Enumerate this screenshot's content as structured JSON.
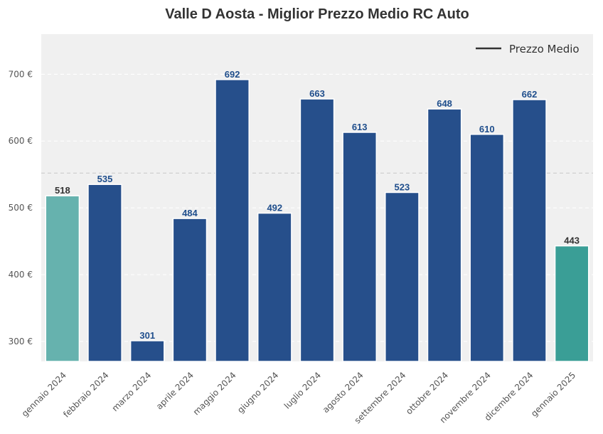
{
  "chart_data": {
    "type": "bar",
    "title": "Valle D Aosta - Miglior Prezzo Medio RC Auto",
    "categories": [
      "gennaio 2024",
      "febbraio 2024",
      "marzo 2024",
      "aprile 2024",
      "maggio 2024",
      "giugno 2024",
      "luglio 2024",
      "agosto 2024",
      "settembre 2024",
      "ottobre 2024",
      "novembre 2024",
      "dicembre 2024",
      "gennaio 2025"
    ],
    "values": [
      518,
      535,
      301,
      484,
      692,
      492,
      663,
      613,
      523,
      648,
      610,
      662,
      443
    ],
    "labels": [
      "518",
      "535",
      "301",
      "484",
      "692",
      "492",
      "663",
      "613",
      "523",
      "648",
      "610",
      "662",
      "443"
    ],
    "bar_colors": [
      "#66b2ae",
      "#264f8b",
      "#264f8b",
      "#264f8b",
      "#264f8b",
      "#264f8b",
      "#264f8b",
      "#264f8b",
      "#264f8b",
      "#264f8b",
      "#264f8b",
      "#264f8b",
      "#3a9e96"
    ],
    "label_colors": [
      "#333333",
      "#1f4e8c",
      "#1f4e8c",
      "#1f4e8c",
      "#1f4e8c",
      "#1f4e8c",
      "#1f4e8c",
      "#1f4e8c",
      "#1f4e8c",
      "#1f4e8c",
      "#1f4e8c",
      "#1f4e8c",
      "#333333"
    ],
    "y_ticks": [
      300,
      400,
      500,
      600,
      700
    ],
    "y_tick_labels": [
      "300 €",
      "400 €",
      "500 €",
      "600 €",
      "700 €"
    ],
    "ylim": [
      270,
      760
    ],
    "average": 552,
    "legend": {
      "label": "Prezzo Medio",
      "position": "top-right"
    },
    "grid": true,
    "colors": {
      "background": "#f0f0f0",
      "grid": "#ffffff",
      "average_line": "#c8c8c8",
      "legend_line": "#333333"
    }
  }
}
